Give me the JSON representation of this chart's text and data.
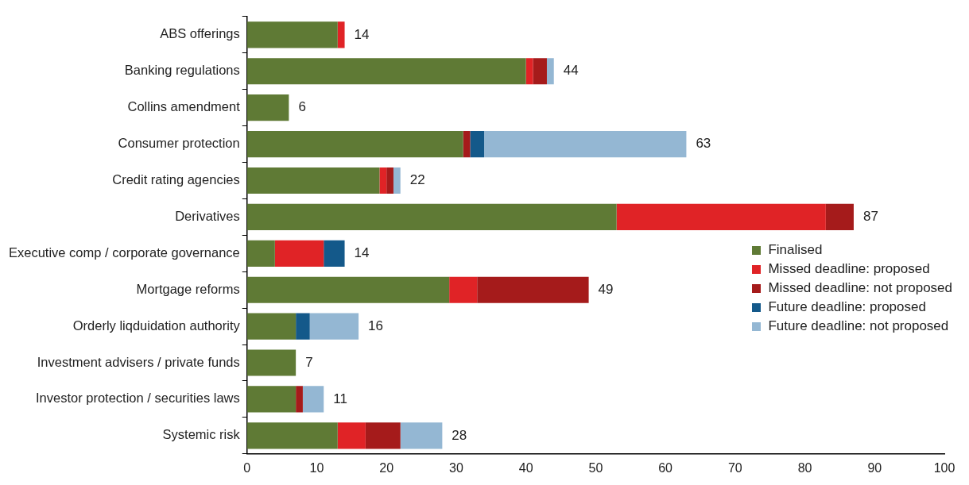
{
  "chart_data": {
    "type": "bar",
    "orientation": "horizontal",
    "stacked": true,
    "categories": [
      "ABS offerings",
      "Banking regulations",
      "Collins amendment",
      "Consumer protection",
      "Credit rating agencies",
      "Derivatives",
      "Executive comp / corporate governance",
      "Mortgage reforms",
      "Orderly liqduidation authority",
      "Investment advisers / private funds",
      "Investor protection / securities laws",
      "Systemic risk"
    ],
    "series": [
      {
        "name": "Finalised",
        "color": "#5f7a35",
        "values": [
          13,
          40,
          6,
          31,
          19,
          53,
          4,
          29,
          7,
          7,
          7,
          13
        ]
      },
      {
        "name": "Missed deadline: proposed",
        "color": "#e02326",
        "values": [
          1,
          1,
          0,
          0,
          1,
          30,
          7,
          4,
          0,
          0,
          0,
          4
        ]
      },
      {
        "name": "Missed deadline: not proposed",
        "color": "#a51b1b",
        "values": [
          0,
          2,
          0,
          1,
          1,
          4,
          0,
          16,
          0,
          0,
          1,
          5
        ]
      },
      {
        "name": "Future deadline: proposed",
        "color": "#14598a",
        "values": [
          0,
          0,
          0,
          2,
          0,
          0,
          3,
          0,
          2,
          0,
          0,
          0
        ]
      },
      {
        "name": "Future deadline: not proposed",
        "color": "#94b7d3",
        "values": [
          0,
          1,
          0,
          29,
          1,
          0,
          0,
          0,
          7,
          0,
          3,
          6
        ]
      }
    ],
    "totals": [
      "14",
      "44",
      "6",
      "63",
      "22",
      "87",
      "14",
      "49",
      "16",
      "7",
      "11",
      "28"
    ],
    "xlim": [
      0,
      100
    ],
    "xticks": [
      0,
      10,
      20,
      30,
      40,
      50,
      60,
      70,
      80,
      90,
      100
    ],
    "grid": false,
    "legend": "right"
  }
}
